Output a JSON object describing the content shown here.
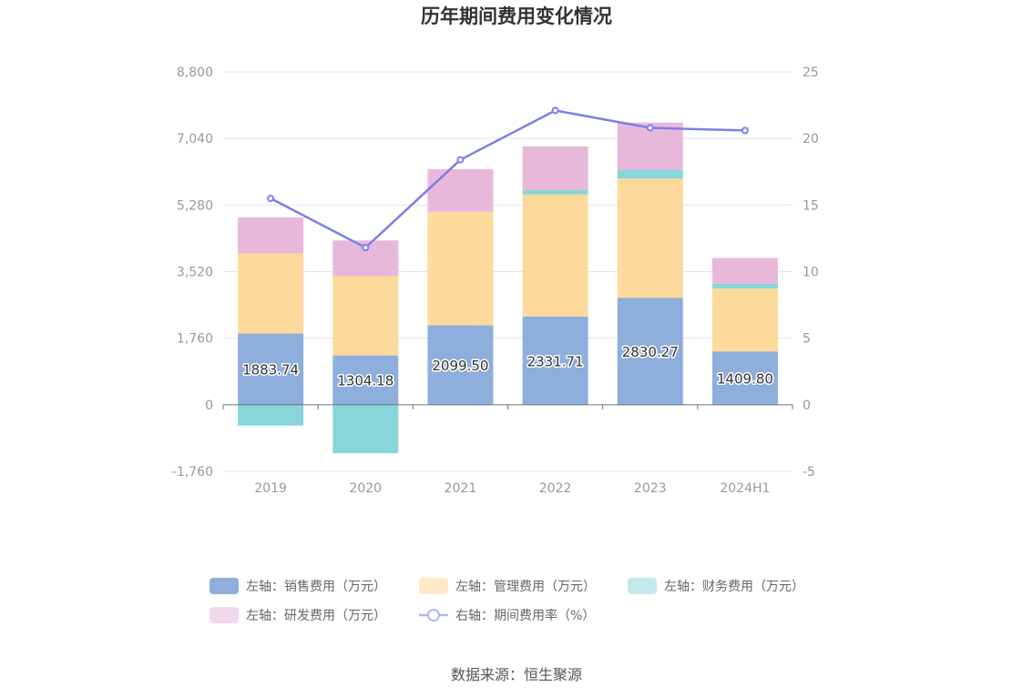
{
  "title": "历年期间费用变化情况",
  "source": "数据来源：恒生聚源",
  "colors": {
    "sales": "#8eaedc",
    "admin": "#fdd99b",
    "finance": "#86d6da",
    "rd": "#e8b8db",
    "rate": "#7b7fe8"
  },
  "chart_data": {
    "type": "bar",
    "stacked": true,
    "categories": [
      "2019",
      "2020",
      "2021",
      "2022",
      "2023",
      "2024H1"
    ],
    "left_axis": {
      "ylim": [
        -1760,
        8800
      ],
      "ticks": [
        -1760,
        0,
        1760,
        3520,
        5280,
        7040,
        8800
      ],
      "tick_labels": [
        "-1,760",
        "0",
        "1,760",
        "3,520",
        "5,280",
        "7,040",
        "8,800"
      ]
    },
    "right_axis": {
      "ylim": [
        -5,
        25
      ],
      "ticks": [
        -5,
        0,
        5,
        10,
        15,
        20,
        25
      ],
      "tick_labels": [
        "-5",
        "0",
        "5",
        "10",
        "15",
        "20",
        "25"
      ]
    },
    "series": [
      {
        "key": "sales",
        "name": "左轴：销售费用（万元）",
        "axis": "left",
        "type": "bar",
        "values": [
          1883.74,
          1304.18,
          2099.5,
          2331.71,
          2830.27,
          1409.8
        ],
        "labels": [
          "1883.74",
          "1304.18",
          "2099.50",
          "2331.71",
          "2830.27",
          "1409.80"
        ]
      },
      {
        "key": "admin",
        "name": "左轴：管理费用（万元）",
        "axis": "left",
        "type": "bar",
        "values": [
          2120,
          2100,
          3000,
          3230,
          3150,
          1660
        ]
      },
      {
        "key": "finance",
        "name": "左轴：财务费用（万元）",
        "axis": "left",
        "type": "bar",
        "values": [
          -550,
          -1280,
          0,
          110,
          230,
          130
        ]
      },
      {
        "key": "rd",
        "name": "左轴：研发费用（万元）",
        "axis": "left",
        "type": "bar",
        "values": [
          950,
          940,
          1130,
          1160,
          1250,
          680
        ]
      },
      {
        "key": "rate",
        "name": "右轴：期间费用率（%）",
        "axis": "right",
        "type": "line",
        "values": [
          15.5,
          11.8,
          18.4,
          22.1,
          20.8,
          20.6
        ]
      }
    ],
    "grid": true,
    "legend_position": "bottom"
  }
}
